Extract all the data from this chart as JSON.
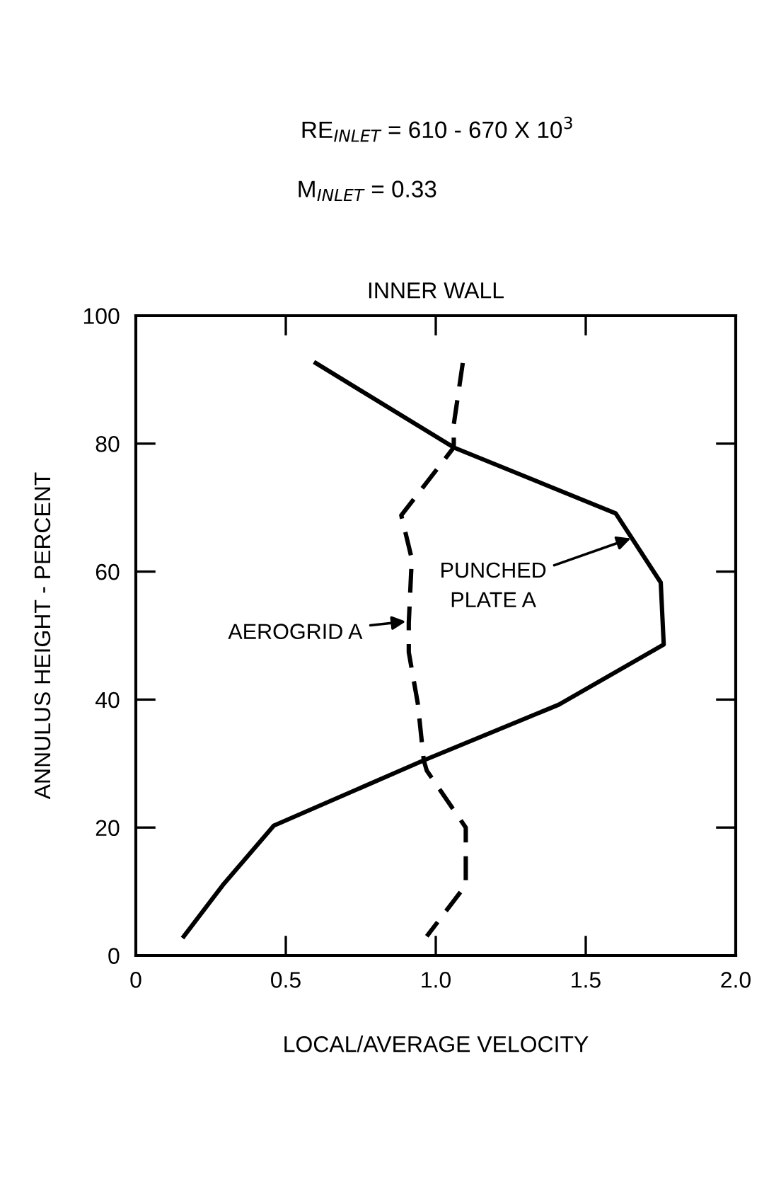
{
  "chart_data": {
    "type": "line",
    "title": "RE$_{INLET}$ = 610 - 670 X 10$^{3}$",
    "subtitle": "M$_{INLET}$ = 0.33",
    "xlabel": "LOCAL/AVERAGE VELOCITY",
    "ylabel": "ANNULUS HEIGHT - PERCENT",
    "series": [
      {
        "color": "#000000",
        "line_style": "solid",
        "x": [
          0.6,
          1.06,
          1.6,
          1.75,
          1.76,
          1.41,
          0.96,
          0.46,
          0.29,
          0.16
        ],
        "values": [
          92.6,
          79.4,
          69.1,
          58.3,
          48.6,
          39.2,
          30.5,
          20.3,
          11,
          3
        ]
      },
      {
        "color": "#000000",
        "line_style": "dashed",
        "x": [
          1.09,
          1.06,
          1.06,
          0.885,
          0.92,
          0.91,
          0.91,
          0.94,
          0.96,
          0.97,
          1.1,
          1.1,
          0.97
        ],
        "values": [
          92.6,
          83,
          79.4,
          68.8,
          62,
          52,
          47.4,
          39.4,
          30.5,
          28.9,
          20,
          11,
          3
        ]
      }
    ],
    "annotations": [
      "INNER WALL",
      {
        "text": "PUNCHED\nPLATE A",
        "x": 1.65,
        "y": 65.2
      },
      {
        "text": "AEROGRID A",
        "x": 0.9,
        "y": 52.2
      }
    ],
    "xlim": [
      0,
      2.0
    ],
    "ylim": [
      0,
      100
    ],
    "xticks": [
      {
        "value": 0,
        "label": "0"
      },
      0.5,
      {
        "value": 1,
        "label": "1.0"
      },
      1.5,
      {
        "value": 2,
        "label": "2.0"
      }
    ],
    "yticks": [
      0,
      20,
      40,
      60,
      80,
      100
    ],
    "grid": false,
    "legend": false,
    "marker": "none"
  }
}
